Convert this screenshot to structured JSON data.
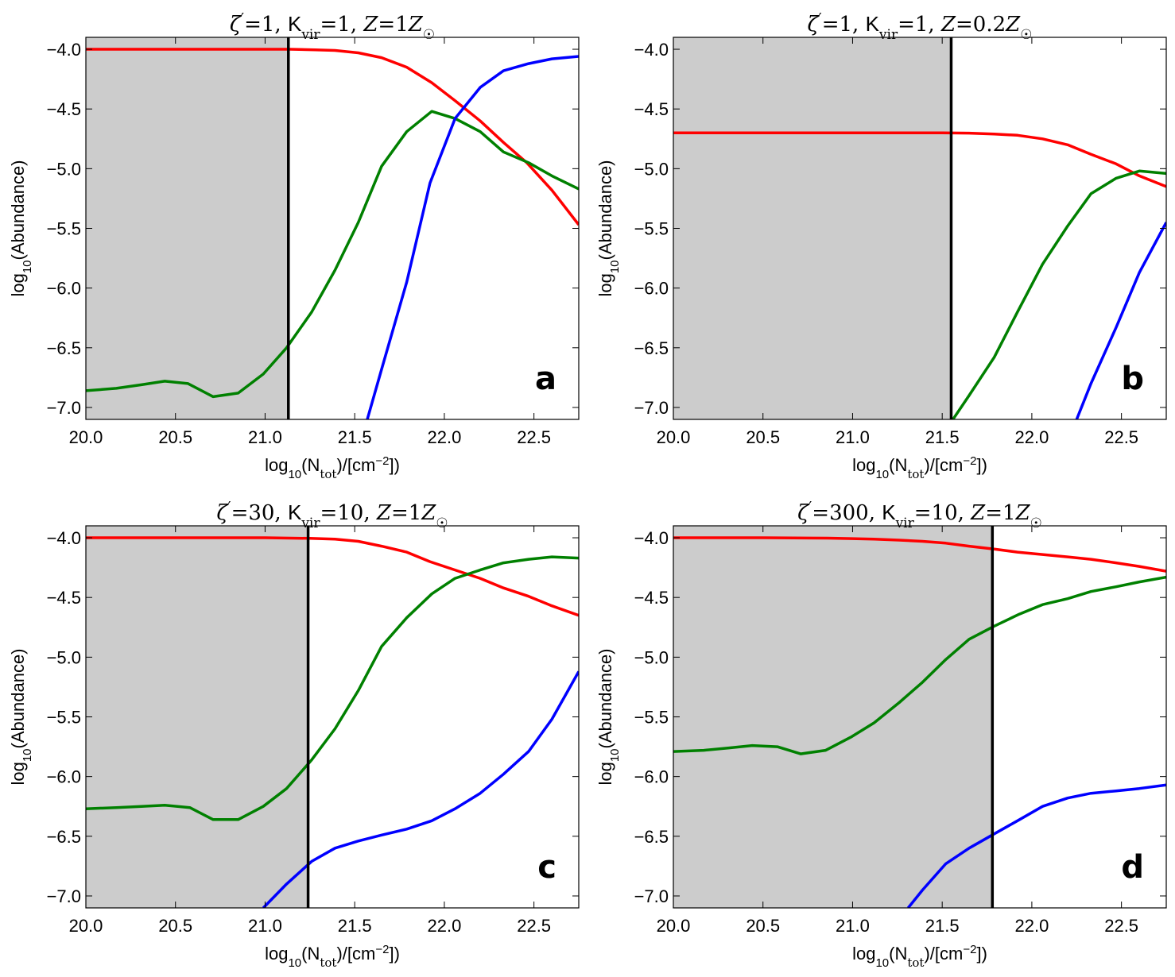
{
  "chart_data": [
    {
      "type": "line",
      "panel": "a",
      "title": "ζ′=1, K_vir=1, Z=1Z☉",
      "title_parts": {
        "zeta": "1",
        "kvir": "1",
        "z": "1"
      },
      "xlabel": "log10(Ntot)/[cm−2])",
      "ylabel": "log10(Abundance)",
      "xlim": [
        20.0,
        22.75
      ],
      "ylim": [
        -7.1,
        -3.9
      ],
      "xticks": [
        "20.0",
        "20.5",
        "21.0",
        "21.5",
        "22.0",
        "22.5"
      ],
      "yticks": [
        "-4.0",
        "-4.5",
        "-5.0",
        "-5.5",
        "-6.0",
        "-6.5",
        "-7.0"
      ],
      "shade_to_x": 21.13,
      "series": [
        {
          "name": "red",
          "color": "#ff0000",
          "x": [
            20.0,
            20.14,
            20.29,
            20.43,
            20.57,
            20.71,
            20.86,
            21.0,
            21.14,
            21.28,
            21.39,
            21.52,
            21.65,
            21.79,
            21.93,
            22.06,
            22.2,
            22.33,
            22.46,
            22.6,
            22.75
          ],
          "y": [
            -4.0,
            -4.0,
            -4.0,
            -4.0,
            -4.0,
            -4.0,
            -4.0,
            -4.0,
            -4.0,
            -4.005,
            -4.01,
            -4.03,
            -4.07,
            -4.15,
            -4.28,
            -4.43,
            -4.6,
            -4.78,
            -4.95,
            -5.18,
            -5.47
          ]
        },
        {
          "name": "green",
          "color": "#008000",
          "x": [
            20.0,
            20.17,
            20.31,
            20.44,
            20.57,
            20.71,
            20.85,
            20.99,
            21.12,
            21.26,
            21.39,
            21.52,
            21.65,
            21.79,
            21.93,
            22.06,
            22.2,
            22.33,
            22.47,
            22.6,
            22.75
          ],
          "y": [
            -6.86,
            -6.84,
            -6.81,
            -6.78,
            -6.8,
            -6.91,
            -6.88,
            -6.72,
            -6.5,
            -6.2,
            -5.85,
            -5.45,
            -4.98,
            -4.69,
            -4.52,
            -4.58,
            -4.69,
            -4.86,
            -4.95,
            -5.06,
            -5.17
          ]
        },
        {
          "name": "blue",
          "color": "#0000ff",
          "x": [
            21.57,
            21.65,
            21.79,
            21.92,
            22.06,
            22.2,
            22.33,
            22.47,
            22.6,
            22.75
          ],
          "y": [
            -7.1,
            -6.68,
            -5.95,
            -5.12,
            -4.58,
            -4.32,
            -4.18,
            -4.12,
            -4.08,
            -4.06
          ]
        }
      ]
    },
    {
      "type": "line",
      "panel": "b",
      "title": "ζ′=1, K_vir=1, Z=0.2Z☉",
      "title_parts": {
        "zeta": "1",
        "kvir": "1",
        "z": "0.2"
      },
      "xlabel": "log10(Ntot)/[cm−2])",
      "ylabel": "log10(Abundance)",
      "xlim": [
        20.0,
        22.75
      ],
      "ylim": [
        -7.1,
        -3.9
      ],
      "xticks": [
        "20.0",
        "20.5",
        "21.0",
        "21.5",
        "22.0",
        "22.5"
      ],
      "yticks": [
        "-4.0",
        "-4.5",
        "-5.0",
        "-5.5",
        "-6.0",
        "-6.5",
        "-7.0"
      ],
      "shade_to_x": 21.55,
      "series": [
        {
          "name": "red",
          "color": "#ff0000",
          "x": [
            20.0,
            20.5,
            21.0,
            21.5,
            21.65,
            21.79,
            21.92,
            22.06,
            22.2,
            22.33,
            22.47,
            22.6,
            22.75
          ],
          "y": [
            -4.7,
            -4.7,
            -4.7,
            -4.7,
            -4.702,
            -4.71,
            -4.72,
            -4.75,
            -4.8,
            -4.88,
            -4.96,
            -5.06,
            -5.15
          ]
        },
        {
          "name": "green",
          "color": "#008000",
          "x": [
            21.56,
            21.65,
            21.79,
            21.92,
            22.06,
            22.2,
            22.33,
            22.47,
            22.6,
            22.75
          ],
          "y": [
            -7.1,
            -6.9,
            -6.58,
            -6.2,
            -5.8,
            -5.48,
            -5.21,
            -5.08,
            -5.02,
            -5.04
          ]
        },
        {
          "name": "blue",
          "color": "#0000ff",
          "x": [
            22.25,
            22.33,
            22.47,
            22.6,
            22.75
          ],
          "y": [
            -7.1,
            -6.8,
            -6.33,
            -5.87,
            -5.45
          ]
        }
      ]
    },
    {
      "type": "line",
      "panel": "c",
      "title": "ζ′=30, K_vir=10, Z=1Z☉",
      "title_parts": {
        "zeta": "30",
        "kvir": "10",
        "z": "1"
      },
      "xlabel": "log10(Ntot)/[cm−2])",
      "ylabel": "log10(Abundance)",
      "xlim": [
        20.0,
        22.75
      ],
      "ylim": [
        -7.1,
        -3.9
      ],
      "xticks": [
        "20.0",
        "20.5",
        "21.0",
        "21.5",
        "22.0",
        "22.5"
      ],
      "yticks": [
        "-4.0",
        "-4.5",
        "-5.0",
        "-5.5",
        "-6.0",
        "-6.5",
        "-7.0"
      ],
      "shade_to_x": 21.24,
      "series": [
        {
          "name": "red",
          "color": "#ff0000",
          "x": [
            20.0,
            20.5,
            21.0,
            21.25,
            21.39,
            21.52,
            21.65,
            21.79,
            21.92,
            22.06,
            22.2,
            22.33,
            22.47,
            22.6,
            22.75
          ],
          "y": [
            -4.0,
            -4.0,
            -4.0,
            -4.005,
            -4.012,
            -4.03,
            -4.07,
            -4.12,
            -4.2,
            -4.27,
            -4.34,
            -4.42,
            -4.49,
            -4.57,
            -4.65
          ]
        },
        {
          "name": "green",
          "color": "#008000",
          "x": [
            20.0,
            20.17,
            20.31,
            20.44,
            20.58,
            20.71,
            20.85,
            20.99,
            21.12,
            21.26,
            21.39,
            21.52,
            21.65,
            21.79,
            21.93,
            22.06,
            22.2,
            22.33,
            22.47,
            22.6,
            22.75
          ],
          "y": [
            -6.27,
            -6.26,
            -6.25,
            -6.24,
            -6.26,
            -6.36,
            -6.36,
            -6.25,
            -6.1,
            -5.86,
            -5.6,
            -5.28,
            -4.91,
            -4.67,
            -4.47,
            -4.34,
            -4.27,
            -4.21,
            -4.18,
            -4.16,
            -4.17
          ]
        },
        {
          "name": "blue",
          "color": "#0000ff",
          "x": [
            20.99,
            21.12,
            21.26,
            21.39,
            21.52,
            21.65,
            21.79,
            21.93,
            22.06,
            22.2,
            22.33,
            22.47,
            22.6,
            22.75
          ],
          "y": [
            -7.1,
            -6.9,
            -6.71,
            -6.6,
            -6.54,
            -6.49,
            -6.44,
            -6.37,
            -6.27,
            -6.14,
            -5.98,
            -5.79,
            -5.52,
            -5.12
          ]
        }
      ]
    },
    {
      "type": "line",
      "panel": "d",
      "title": "ζ′=300, K_vir=10, Z=1Z☉",
      "title_parts": {
        "zeta": "300",
        "kvir": "10",
        "z": "1"
      },
      "xlabel": "log10(Ntot)/[cm−2])",
      "ylabel": "log10(Abundance)",
      "xlim": [
        20.0,
        22.75
      ],
      "ylim": [
        -7.1,
        -3.9
      ],
      "xticks": [
        "20.0",
        "20.5",
        "21.0",
        "21.5",
        "22.0",
        "22.5"
      ],
      "yticks": [
        "-4.0",
        "-4.5",
        "-5.0",
        "-5.5",
        "-6.0",
        "-6.5",
        "-7.0"
      ],
      "shade_to_x": 21.78,
      "series": [
        {
          "name": "red",
          "color": "#ff0000",
          "x": [
            20.0,
            20.5,
            20.86,
            21.0,
            21.12,
            21.26,
            21.39,
            21.52,
            21.65,
            21.79,
            21.92,
            22.06,
            22.2,
            22.33,
            22.47,
            22.6,
            22.75
          ],
          "y": [
            -4.0,
            -4.0,
            -4.003,
            -4.007,
            -4.012,
            -4.02,
            -4.03,
            -4.045,
            -4.07,
            -4.095,
            -4.12,
            -4.14,
            -4.16,
            -4.18,
            -4.21,
            -4.24,
            -4.28
          ]
        },
        {
          "name": "green",
          "color": "#008000",
          "x": [
            20.0,
            20.17,
            20.31,
            20.44,
            20.58,
            20.71,
            20.85,
            20.99,
            21.12,
            21.26,
            21.39,
            21.52,
            21.65,
            21.79,
            21.93,
            22.06,
            22.2,
            22.33,
            22.47,
            22.6,
            22.75
          ],
          "y": [
            -5.79,
            -5.78,
            -5.76,
            -5.74,
            -5.75,
            -5.81,
            -5.78,
            -5.67,
            -5.55,
            -5.38,
            -5.21,
            -5.02,
            -4.85,
            -4.74,
            -4.64,
            -4.56,
            -4.51,
            -4.45,
            -4.41,
            -4.37,
            -4.33
          ]
        },
        {
          "name": "blue",
          "color": "#0000ff",
          "x": [
            21.31,
            21.39,
            21.52,
            21.65,
            21.79,
            21.92,
            22.06,
            22.2,
            22.33,
            22.47,
            22.6,
            22.75
          ],
          "y": [
            -7.1,
            -6.95,
            -6.73,
            -6.6,
            -6.48,
            -6.37,
            -6.25,
            -6.18,
            -6.14,
            -6.12,
            -6.1,
            -6.07
          ]
        }
      ]
    }
  ]
}
